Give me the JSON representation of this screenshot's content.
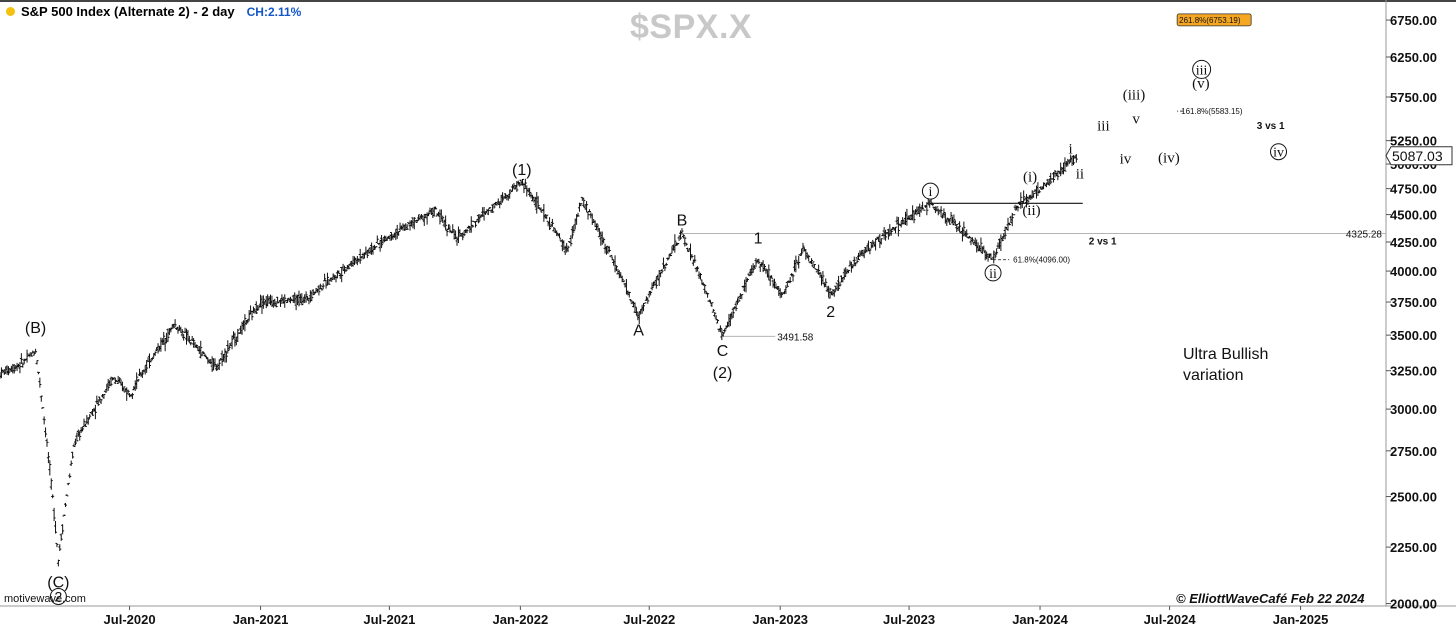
{
  "header": {
    "title": "S&P 500 Index (Alternate 2) - 2 day",
    "change": "CH:2.11%",
    "ticker": "$SPX.X"
  },
  "watermarks": {
    "left": "motivewave.com",
    "right": "© ElliottWaveCafé Feb 22 2024"
  },
  "note": "Ultra Bullish\nvariation",
  "colors": {
    "dot": "#f3c10e",
    "change_text": "#1456c8",
    "ticker_text": "#c8c8c8",
    "candles": "#111111",
    "fib_box": "#f5a623"
  },
  "chart_data": {
    "type": "line",
    "series": [
      {
        "x": [
          "2020-01-01",
          "2020-02-01",
          "2020-02-20",
          "2020-03-23",
          "2020-04-15",
          "2020-06-08",
          "2020-07-01",
          "2020-09-02",
          "2020-10-30",
          "2021-01-01",
          "2021-03-04",
          "2021-07-01",
          "2021-09-02",
          "2021-10-04",
          "2022-01-03",
          "2022-03-08",
          "2022-03-29",
          "2022-06-16",
          "2022-08-16",
          "2022-10-12",
          "2022-12-01",
          "2023-01-05",
          "2023-02-02",
          "2023-03-13",
          "2023-04-28",
          "2023-07-31",
          "2023-10-27",
          "2023-12-01",
          "2024-01-02",
          "2024-02-22"
        ],
        "values": [
          3230,
          3300,
          3390,
          2192,
          2800,
          3200,
          3100,
          3580,
          3270,
          3750,
          3770,
          4300,
          4540,
          4280,
          4818,
          4170,
          4637,
          3636,
          4325,
          3491,
          4100,
          3800,
          4195,
          3808,
          4170,
          4607,
          4096,
          4590,
          4750,
          5087
        ]
      }
    ],
    "x_ticks": [
      "Jul-2020",
      "Jan-2021",
      "Jul-2021",
      "Jan-2022",
      "Jul-2022",
      "Jan-2023",
      "Jul-2023",
      "Jan-2024",
      "Jul-2024",
      "Jan-2025"
    ],
    "y_ticks": [
      "2000.00",
      "2250.00",
      "2500.00",
      "2750.00",
      "3000.00",
      "3250.00",
      "3500.00",
      "3750.00",
      "4000.00",
      "4250.00",
      "4500.00",
      "4750.00",
      "5000.00",
      "5250.00",
      "5750.00",
      "6250.00",
      "6750.00"
    ],
    "ylim": [
      1990,
      6980
    ],
    "yscale": "log",
    "current_price": "5087.03",
    "annotations": [
      {
        "text": "(B)",
        "date": "2020-02-20",
        "price": 3560,
        "style": "sans"
      },
      {
        "text": "(C)",
        "date": "2020-03-23",
        "price": 2095,
        "style": "sans"
      },
      {
        "text": "2",
        "date": "2020-03-23",
        "price": 2030,
        "style": "circle"
      },
      {
        "text": "(1)",
        "date": "2022-01-03",
        "price": 4950,
        "style": "sans"
      },
      {
        "text": "B",
        "date": "2022-08-16",
        "price": 4455,
        "style": "sans"
      },
      {
        "text": "A",
        "date": "2022-06-16",
        "price": 3540,
        "style": "sans"
      },
      {
        "text": "C",
        "date": "2022-10-12",
        "price": 3395,
        "style": "sans"
      },
      {
        "text": "(2)",
        "date": "2022-10-12",
        "price": 3240,
        "style": "sans"
      },
      {
        "text": "1",
        "date": "2022-12-01",
        "price": 4290,
        "style": "sans"
      },
      {
        "text": "2",
        "date": "2023-03-13",
        "price": 3680,
        "style": "sans"
      },
      {
        "text": "i",
        "date": "2023-07-31",
        "price": 4725,
        "style": "circle"
      },
      {
        "text": "ii",
        "date": "2023-10-27",
        "price": 3985,
        "style": "circle"
      },
      {
        "text": "(i)",
        "date": "2023-12-18",
        "price": 4870,
        "style": "serif"
      },
      {
        "text": "(ii)",
        "date": "2023-12-20",
        "price": 4545,
        "style": "serif"
      },
      {
        "text": "i",
        "date": "2024-02-13",
        "price": 5165,
        "style": "serif"
      },
      {
        "text": "ii",
        "date": "2024-02-26",
        "price": 4900,
        "style": "serif"
      },
      {
        "text": "iii",
        "date": "2024-03-30",
        "price": 5420,
        "style": "serif"
      },
      {
        "text": "iv",
        "date": "2024-04-30",
        "price": 5060,
        "style": "serif"
      },
      {
        "text": "(iii)",
        "date": "2024-05-12",
        "price": 5780,
        "style": "serif"
      },
      {
        "text": "v",
        "date": "2024-05-15",
        "price": 5500,
        "style": "serif"
      },
      {
        "text": "(iv)",
        "date": "2024-06-30",
        "price": 5070,
        "style": "serif"
      },
      {
        "text": "iii",
        "date": "2024-08-15",
        "price": 6090,
        "style": "circle"
      },
      {
        "text": "(v)",
        "date": "2024-08-14",
        "price": 5920,
        "style": "serif"
      },
      {
        "text": "iv",
        "date": "2024-12-01",
        "price": 5130,
        "style": "circle"
      }
    ],
    "levels": [
      {
        "label": "4325.28",
        "price": 4325.28,
        "from": "2022-08-16",
        "to": "end",
        "style": "thin",
        "tag": "2 vs 1",
        "tag_date": "2024-03-29"
      },
      {
        "label": "3491.58",
        "price": 3491.58,
        "from": "2022-10-12",
        "to": "2022-12-25",
        "style": "thin"
      },
      {
        "label": "61.8%(4096.00)",
        "price": 4096.0,
        "from": "2023-10-27",
        "to": "2024-03-10",
        "style": "dashed"
      },
      {
        "label": "161.8%(5583.15)",
        "price": 5583.15,
        "from": "2024-07-20",
        "to": "2024-11-01",
        "style": "dashed",
        "tag": "3 vs 1",
        "tag_date": "2024-11-20"
      },
      {
        "label": "261.8%(6753.19)",
        "price": 6753.19,
        "from": "2024-07-20",
        "to": "2024-11-01",
        "style": "boxed"
      },
      {
        "label": "",
        "price": 4607,
        "from": "2023-07-31",
        "to": "2024-03-01",
        "style": "solid"
      }
    ]
  }
}
